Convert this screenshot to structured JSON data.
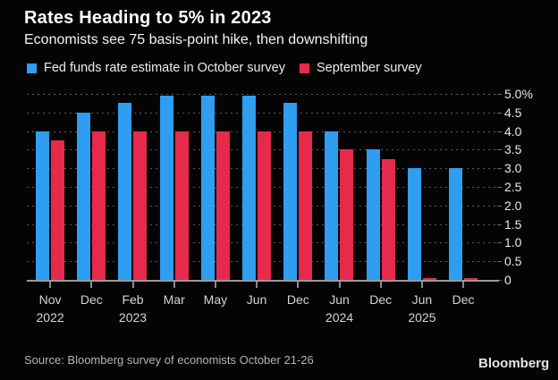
{
  "header": {
    "title": "Rates Heading to 5% in 2023",
    "subtitle": "Economists see 75 basis-point hike, then downshifting"
  },
  "legend": {
    "items": [
      {
        "label": "Fed funds rate estimate in October survey",
        "color": "#2f9df0"
      },
      {
        "label": "September survey",
        "color": "#e62a4b"
      }
    ]
  },
  "chart_data": {
    "type": "bar",
    "categories": [
      "Nov",
      "Dec",
      "Feb",
      "Mar",
      "May",
      "Jun",
      "Dec",
      "Jun",
      "Dec",
      "Jun",
      "Dec"
    ],
    "year_labels": [
      {
        "index": 0,
        "year": "2022"
      },
      {
        "index": 2,
        "year": "2023"
      },
      {
        "index": 7,
        "year": "2024"
      },
      {
        "index": 9,
        "year": "2025"
      }
    ],
    "series": [
      {
        "name": "Fed funds rate estimate in October survey",
        "color": "#2f9df0",
        "values": [
          4.0,
          4.5,
          4.75,
          4.95,
          4.95,
          4.95,
          4.75,
          4.0,
          3.5,
          3.0,
          3.0
        ]
      },
      {
        "name": "September survey",
        "color": "#e62a4b",
        "values": [
          3.75,
          4.0,
          4.0,
          4.0,
          4.0,
          4.0,
          4.0,
          3.5,
          3.25,
          0.05,
          0.05
        ]
      }
    ],
    "title": "Rates Heading to 5% in 2023",
    "xlabel": "",
    "ylabel": "",
    "ylim": [
      0,
      5.0
    ],
    "ytick_step": 0.5,
    "ytick_labels_top_to_bottom": [
      "5.0%",
      "4.5",
      "4.0",
      "3.5",
      "3.0",
      "2.5",
      "2.0",
      "1.5",
      "1.0",
      "0.5",
      "0"
    ],
    "grid": "horizontal-dotted",
    "legend_position": "top"
  },
  "footer": {
    "source": "Source: Bloomberg survey of economists October 21-26",
    "logo": "Bloomberg"
  }
}
